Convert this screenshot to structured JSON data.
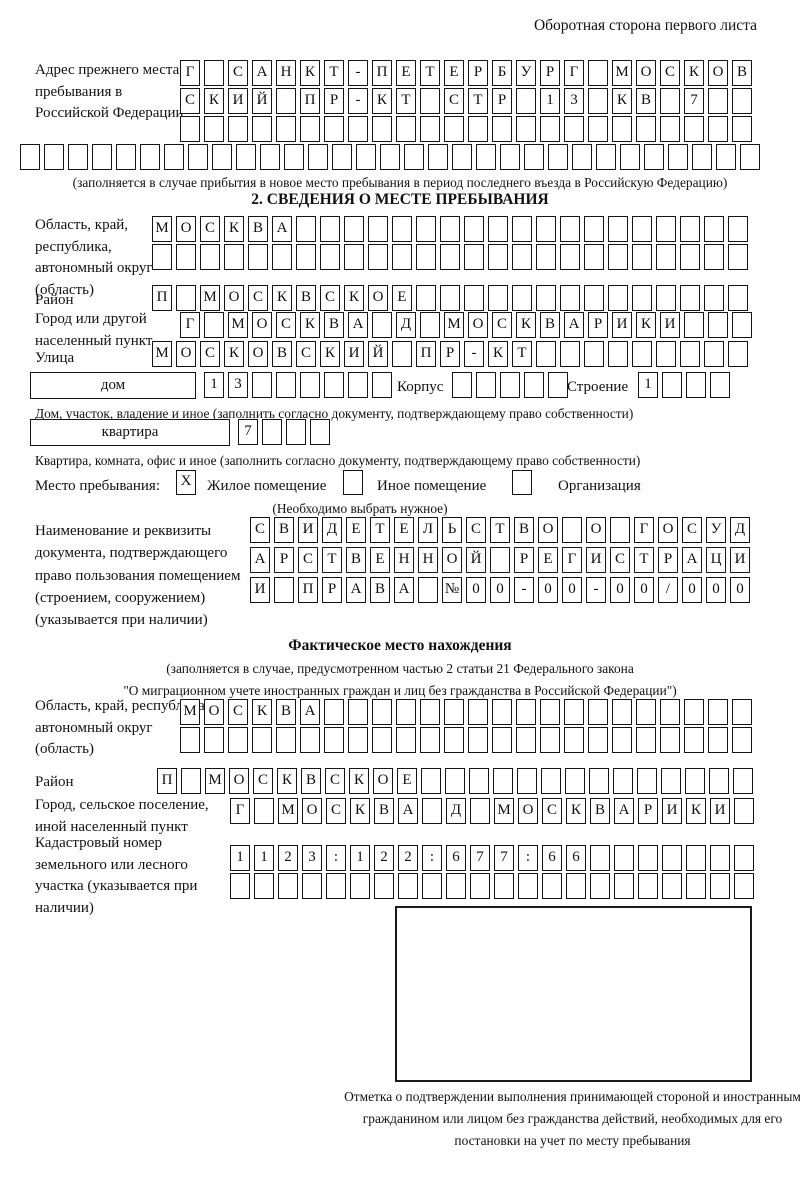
{
  "page_note": "Оборотная сторона первого листа",
  "prev_address": {
    "label": "Адрес прежнего места пребывания в Российской Федерации",
    "rows": [
      {
        "n": 24,
        "v": "Г САНКТ-ПЕТЕРБУРГ МОСКОВ"
      },
      {
        "n": 24,
        "v": "СКИЙ ПР-КТ СТР 13 КВ 7"
      },
      {
        "n": 24,
        "v": ""
      },
      {
        "n": 31,
        "v": ""
      }
    ],
    "caption": "(заполняется в случае прибытия в новое место пребывания в период последнего въезда в Российскую Федерацию)"
  },
  "section2": {
    "title": "2. СВЕДЕНИЯ О МЕСТЕ ПРЕБЫВАНИЯ",
    "region": {
      "label": "Область, край, республика, автономный округ (область)",
      "rows": [
        {
          "n": 25,
          "v": "МОСКВА"
        },
        {
          "n": 25,
          "v": ""
        }
      ]
    },
    "district": {
      "label": "Район",
      "row": {
        "n": 25,
        "v": "П МОСКВСКОЕ"
      }
    },
    "city": {
      "label": "Город или другой населенный пункт",
      "row": {
        "n": 24,
        "v": "Г МОСКВА Д МОСКВАРИКИ"
      }
    },
    "street": {
      "label": "Улица",
      "row": {
        "n": 25,
        "v": "МОСКОВСКИЙ ПР-КТ"
      }
    },
    "house": {
      "box_label": "дом",
      "row": {
        "n": 8,
        "v": "13"
      },
      "korpus_label": "Корпус",
      "korpus_row": {
        "n": 5,
        "v": ""
      },
      "stroenie_label": "Строение",
      "stroenie_row": {
        "n": 4,
        "v": "1"
      },
      "caption": "Дом, участок, владение и иное (заполнить согласно документу, подтверждающему право собственности)"
    },
    "apartment": {
      "box_label": "квартира",
      "row": {
        "n": 4,
        "v": "7"
      },
      "caption": "Квартира, комната, офис и иное (заполнить согласно документу, подтверждающему право собственности)"
    },
    "stay_type": {
      "label": "Место пребывания:",
      "options": [
        {
          "label": "Жилое помещение",
          "checked": "X"
        },
        {
          "label": "Иное помещение",
          "checked": ""
        },
        {
          "label": "Организация",
          "checked": ""
        }
      ],
      "hint": "(Необходимо выбрать нужное)"
    },
    "document": {
      "label": "Наименование и реквизиты документа, подтверждающего право пользования помещением (строением, сооружением) (указывается при наличии)",
      "rows": [
        {
          "n": 21,
          "v": "СВИДЕТЕЛЬСТВО О ГОСУД"
        },
        {
          "n": 21,
          "v": "АРСТВЕННОЙ РЕГИСТРАЦИ"
        },
        {
          "n": 21,
          "v": "И ПРАВА №00-00-00/000"
        }
      ]
    }
  },
  "actual_location": {
    "title": "Фактическое место нахождения",
    "caption_line1": "(заполняется в случае, предусмотренном частью 2 статьи 21 Федерального закона",
    "caption_line2": "\"О миграционном учете иностранных граждан и лиц без гражданства в Российской Федерации\")",
    "region": {
      "label": "Область, край, республика, автономный округ (область)",
      "rows": [
        {
          "n": 24,
          "v": "МОСКВА"
        },
        {
          "n": 24,
          "v": ""
        }
      ]
    },
    "district": {
      "label": "Район",
      "row": {
        "n": 25,
        "v": "П МОСКВСКОЕ"
      }
    },
    "city": {
      "label": "Город, сельское поселение, иной населенный пункт",
      "row": {
        "n": 22,
        "v": "Г МОСКВА Д МОСКВАРИКИ"
      }
    },
    "cadastral": {
      "label": "Кадастровый номер земельного или лесного участка (указывается при наличии)",
      "rows": [
        {
          "n": 22,
          "v": "1123:122:677:66"
        },
        {
          "n": 22,
          "v": ""
        }
      ]
    },
    "stamp_caption": "Отметка о подтверждении выполнения принимающей стороной и иностранным гражданином или лицом без гражданства действий, необходимых для его постановки на учет по месту пребывания"
  }
}
